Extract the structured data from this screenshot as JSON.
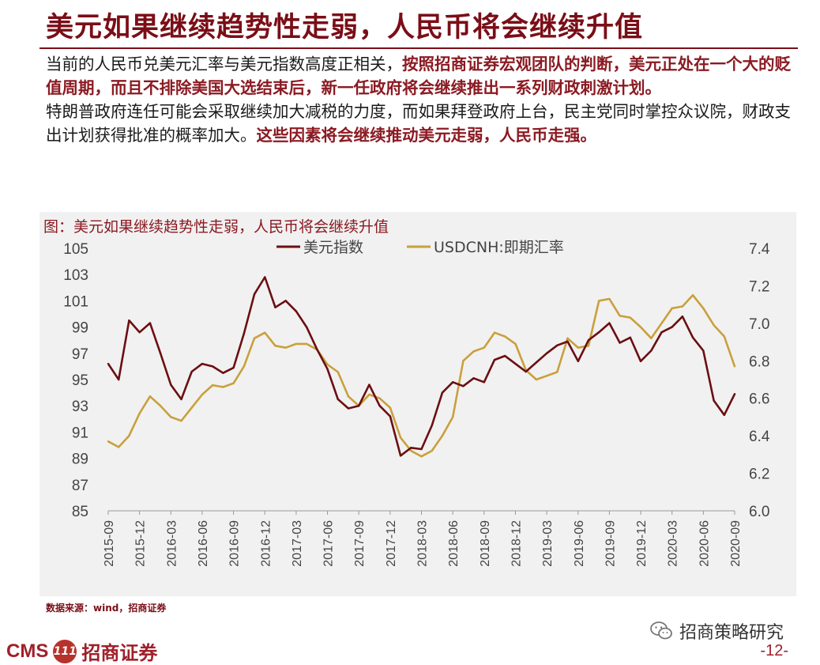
{
  "slide": {
    "title": "美元如果继续趋势性走弱，人民币将会继续升值",
    "paragraph1": [
      {
        "text": "当前的人民币兑美元汇率与美元指数高度正相关，",
        "hl": false
      },
      {
        "text": "按照招商证券宏观团队的判断，美元正处在一个大的贬值周期，而且不排除美国大选结束后，新一任政府将会继续推出一系列财政刺激计划。",
        "hl": true
      }
    ],
    "paragraph2": [
      {
        "text": "特朗普政府连任可能会采取继续加大减税的力度，而如果拜登政府上台，民主党同时掌控众议院，财政支出计划获得批准的概率加大。",
        "hl": false
      },
      {
        "text": "这些因素将会继续推动美元走弱，人民币走强。",
        "hl": true
      }
    ],
    "source": "数据来源：wind，招商证券",
    "wechat": "招商策略研究",
    "logo_cms": "CMS",
    "logo_badge": "111",
    "logo_cn": "招商证券",
    "page_number": "-12-"
  },
  "chart_data": {
    "type": "line",
    "title": "图：美元如果继续趋势性走弱，人民币将会继续升值",
    "colors": {
      "dxy": "#6b0f12",
      "cnh": "#c9a03c"
    },
    "x_tick_labels": [
      "2015-09",
      "2015-12",
      "2016-03",
      "2016-06",
      "2016-09",
      "2016-12",
      "2017-03",
      "2017-06",
      "2017-09",
      "2017-12",
      "2018-03",
      "2018-06",
      "2018-09",
      "2018-12",
      "2019-03",
      "2019-06",
      "2019-09",
      "2019-12",
      "2020-03",
      "2020-06",
      "2020-09"
    ],
    "y_left": {
      "ticks": [
        85,
        87,
        89,
        91,
        93,
        95,
        97,
        99,
        101,
        103,
        105
      ],
      "range": [
        85,
        105
      ]
    },
    "y_right": {
      "ticks": [
        "6.0",
        "6.2",
        "6.4",
        "6.6",
        "6.8",
        "7.0",
        "7.2",
        "7.4"
      ],
      "range": [
        6.0,
        7.4
      ]
    },
    "legend_position": "top-center",
    "series": [
      {
        "name": "美元指数",
        "axis": "left",
        "points": [
          [
            "2015-09",
            96.2
          ],
          [
            "2015-10",
            95.0
          ],
          [
            "2015-11",
            99.5
          ],
          [
            "2015-12",
            98.6
          ],
          [
            "2016-01",
            99.3
          ],
          [
            "2016-02",
            97.0
          ],
          [
            "2016-03",
            94.6
          ],
          [
            "2016-04",
            93.5
          ],
          [
            "2016-05",
            95.6
          ],
          [
            "2016-06",
            96.2
          ],
          [
            "2016-07",
            96.0
          ],
          [
            "2016-08",
            95.5
          ],
          [
            "2016-09",
            95.9
          ],
          [
            "2016-10",
            98.5
          ],
          [
            "2016-11",
            101.5
          ],
          [
            "2016-12",
            102.8
          ],
          [
            "2017-01",
            100.5
          ],
          [
            "2017-02",
            101.0
          ],
          [
            "2017-03",
            100.2
          ],
          [
            "2017-04",
            99.0
          ],
          [
            "2017-05",
            97.3
          ],
          [
            "2017-06",
            95.8
          ],
          [
            "2017-07",
            93.5
          ],
          [
            "2017-08",
            92.8
          ],
          [
            "2017-09",
            93.0
          ],
          [
            "2017-10",
            94.6
          ],
          [
            "2017-11",
            93.0
          ],
          [
            "2017-12",
            92.2
          ],
          [
            "2018-01",
            89.2
          ],
          [
            "2018-02",
            89.8
          ],
          [
            "2018-03",
            89.7
          ],
          [
            "2018-04",
            91.5
          ],
          [
            "2018-05",
            94.0
          ],
          [
            "2018-06",
            94.8
          ],
          [
            "2018-07",
            94.5
          ],
          [
            "2018-08",
            95.1
          ],
          [
            "2018-09",
            94.8
          ],
          [
            "2018-10",
            96.5
          ],
          [
            "2018-11",
            96.8
          ],
          [
            "2018-12",
            96.2
          ],
          [
            "2019-01",
            95.6
          ],
          [
            "2019-02",
            96.3
          ],
          [
            "2019-03",
            97.0
          ],
          [
            "2019-04",
            97.6
          ],
          [
            "2019-05",
            97.9
          ],
          [
            "2019-06",
            96.4
          ],
          [
            "2019-07",
            98.0
          ],
          [
            "2019-08",
            98.6
          ],
          [
            "2019-09",
            99.3
          ],
          [
            "2019-10",
            97.8
          ],
          [
            "2019-11",
            98.2
          ],
          [
            "2019-12",
            96.4
          ],
          [
            "2020-01",
            97.2
          ],
          [
            "2020-02",
            98.6
          ],
          [
            "2020-03",
            99.0
          ],
          [
            "2020-04",
            99.8
          ],
          [
            "2020-05",
            98.2
          ],
          [
            "2020-06",
            97.2
          ],
          [
            "2020-07",
            93.4
          ],
          [
            "2020-08",
            92.3
          ],
          [
            "2020-09",
            93.9
          ]
        ]
      },
      {
        "name": "USDCNH:即期汇率",
        "axis": "right",
        "points": [
          [
            "2015-09",
            6.37
          ],
          [
            "2015-10",
            6.34
          ],
          [
            "2015-11",
            6.4
          ],
          [
            "2015-12",
            6.52
          ],
          [
            "2016-01",
            6.61
          ],
          [
            "2016-02",
            6.56
          ],
          [
            "2016-03",
            6.5
          ],
          [
            "2016-04",
            6.48
          ],
          [
            "2016-05",
            6.55
          ],
          [
            "2016-06",
            6.62
          ],
          [
            "2016-07",
            6.67
          ],
          [
            "2016-08",
            6.66
          ],
          [
            "2016-09",
            6.68
          ],
          [
            "2016-10",
            6.77
          ],
          [
            "2016-11",
            6.92
          ],
          [
            "2016-12",
            6.95
          ],
          [
            "2017-01",
            6.88
          ],
          [
            "2017-02",
            6.87
          ],
          [
            "2017-03",
            6.89
          ],
          [
            "2017-04",
            6.89
          ],
          [
            "2017-05",
            6.86
          ],
          [
            "2017-06",
            6.78
          ],
          [
            "2017-07",
            6.74
          ],
          [
            "2017-08",
            6.61
          ],
          [
            "2017-09",
            6.56
          ],
          [
            "2017-10",
            6.62
          ],
          [
            "2017-11",
            6.6
          ],
          [
            "2017-12",
            6.55
          ],
          [
            "2018-01",
            6.39
          ],
          [
            "2018-02",
            6.32
          ],
          [
            "2018-03",
            6.29
          ],
          [
            "2018-04",
            6.32
          ],
          [
            "2018-05",
            6.4
          ],
          [
            "2018-06",
            6.5
          ],
          [
            "2018-07",
            6.8
          ],
          [
            "2018-08",
            6.85
          ],
          [
            "2018-09",
            6.87
          ],
          [
            "2018-10",
            6.95
          ],
          [
            "2018-11",
            6.93
          ],
          [
            "2018-12",
            6.89
          ],
          [
            "2019-01",
            6.75
          ],
          [
            "2019-02",
            6.7
          ],
          [
            "2019-03",
            6.72
          ],
          [
            "2019-04",
            6.74
          ],
          [
            "2019-05",
            6.92
          ],
          [
            "2019-06",
            6.87
          ],
          [
            "2019-07",
            6.88
          ],
          [
            "2019-08",
            7.12
          ],
          [
            "2019-09",
            7.13
          ],
          [
            "2019-10",
            7.04
          ],
          [
            "2019-11",
            7.03
          ],
          [
            "2019-12",
            6.98
          ],
          [
            "2020-01",
            6.92
          ],
          [
            "2020-02",
            7.0
          ],
          [
            "2020-03",
            7.08
          ],
          [
            "2020-04",
            7.09
          ],
          [
            "2020-05",
            7.15
          ],
          [
            "2020-06",
            7.08
          ],
          [
            "2020-07",
            6.99
          ],
          [
            "2020-08",
            6.93
          ],
          [
            "2020-09",
            6.77
          ]
        ]
      }
    ]
  }
}
